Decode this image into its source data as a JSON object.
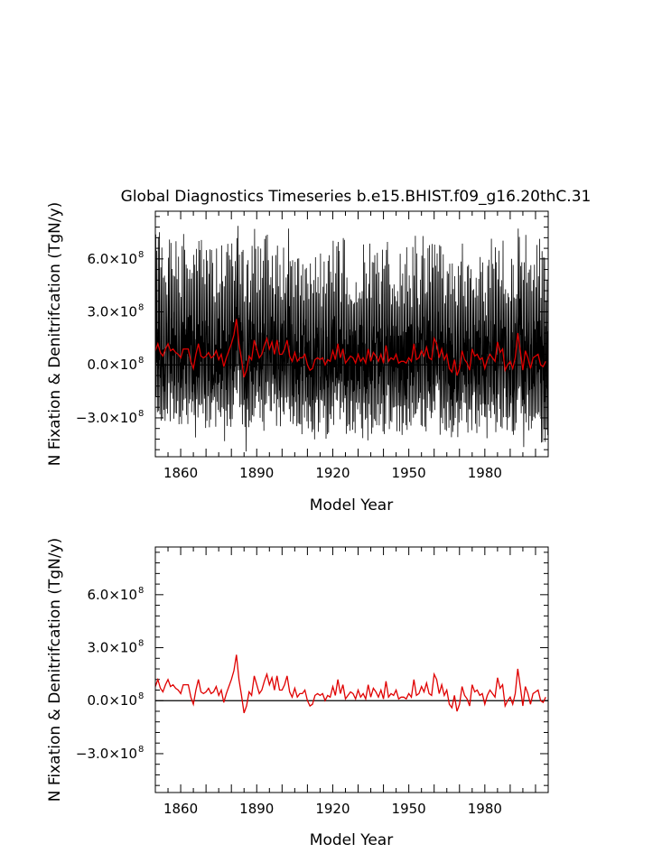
{
  "title": "Global Diagnostics Timeseries b.e15.BHIST.f09_g16.20thC.31",
  "chart_data": [
    {
      "type": "line",
      "xlabel": "Model Year",
      "ylabel": "N Fixation & Denitrifcation (TgN/y)",
      "xlim": [
        1850,
        2005
      ],
      "ylim": [
        -520000000.0,
        870000000.0
      ],
      "x_ticks": [
        1860,
        1890,
        1920,
        1950,
        1980
      ],
      "y_ticks": [
        {
          "value": 600000000.0,
          "mantissa": "6.0×10",
          "exp": "8"
        },
        {
          "value": 300000000.0,
          "mantissa": "3.0×10",
          "exp": "8"
        },
        {
          "value": 0.0,
          "mantissa": "0.0×10",
          "exp": "8"
        },
        {
          "value": -300000000.0,
          "mantissa": "−3.0×10",
          "exp": "8"
        }
      ],
      "zero_line": true,
      "series": [
        {
          "color": "#000000",
          "kind": "monthly",
          "note": "monthly values oscillate between about -4.5e8 and 8.0e8 around the annual mean"
        },
        {
          "color": "#e00000",
          "kind": "annual",
          "values_ref": "annual_mean"
        }
      ]
    },
    {
      "type": "line",
      "xlabel": "Model Year",
      "ylabel": "N Fixation & Denitrifcation (TgN/y)",
      "xlim": [
        1850,
        2005
      ],
      "ylim": [
        -520000000.0,
        870000000.0
      ],
      "x_ticks": [
        1860,
        1890,
        1920,
        1950,
        1980
      ],
      "y_ticks": [
        {
          "value": 600000000.0,
          "mantissa": "6.0×10",
          "exp": "8"
        },
        {
          "value": 300000000.0,
          "mantissa": "3.0×10",
          "exp": "8"
        },
        {
          "value": 0.0,
          "mantissa": "0.0×10",
          "exp": "8"
        },
        {
          "value": -300000000.0,
          "mantissa": "−3.0×10",
          "exp": "8"
        }
      ],
      "zero_line": true,
      "series": [
        {
          "color": "#e00000",
          "kind": "annual",
          "values_ref": "annual_mean"
        }
      ]
    }
  ],
  "annual_mean": {
    "x_start": 1850,
    "x_step": 1,
    "values": [
      80000000.0,
      120000000.0,
      70000000.0,
      50000000.0,
      90000000.0,
      120000000.0,
      80000000.0,
      90000000.0,
      70000000.0,
      60000000.0,
      40000000.0,
      90000000.0,
      90000000.0,
      90000000.0,
      20000000.0,
      -20000000.0,
      60000000.0,
      120000000.0,
      50000000.0,
      40000000.0,
      50000000.0,
      70000000.0,
      40000000.0,
      50000000.0,
      80000000.0,
      30000000.0,
      60000000.0,
      -10000000.0,
      40000000.0,
      80000000.0,
      120000000.0,
      170000000.0,
      260000000.0,
      120000000.0,
      30000000.0,
      -70000000.0,
      -30000000.0,
      50000000.0,
      30000000.0,
      140000000.0,
      90000000.0,
      40000000.0,
      60000000.0,
      110000000.0,
      150000000.0,
      90000000.0,
      130000000.0,
      60000000.0,
      140000000.0,
      60000000.0,
      60000000.0,
      90000000.0,
      140000000.0,
      50000000.0,
      20000000.0,
      70000000.0,
      20000000.0,
      40000000.0,
      40000000.0,
      60000000.0,
      0.0,
      -30000000.0,
      -20000000.0,
      30000000.0,
      40000000.0,
      30000000.0,
      40000000.0,
      0.0,
      30000000.0,
      20000000.0,
      80000000.0,
      30000000.0,
      120000000.0,
      40000000.0,
      90000000.0,
      10000000.0,
      30000000.0,
      50000000.0,
      40000000.0,
      10000000.0,
      60000000.0,
      20000000.0,
      40000000.0,
      10000000.0,
      90000000.0,
      20000000.0,
      70000000.0,
      50000000.0,
      20000000.0,
      60000000.0,
      10000000.0,
      110000000.0,
      20000000.0,
      40000000.0,
      30000000.0,
      60000000.0,
      10000000.0,
      20000000.0,
      20000000.0,
      10000000.0,
      40000000.0,
      20000000.0,
      120000000.0,
      30000000.0,
      40000000.0,
      80000000.0,
      50000000.0,
      100000000.0,
      40000000.0,
      30000000.0,
      150000000.0,
      120000000.0,
      40000000.0,
      90000000.0,
      30000000.0,
      60000000.0,
      -20000000.0,
      -40000000.0,
      30000000.0,
      -60000000.0,
      -20000000.0,
      80000000.0,
      30000000.0,
      10000000.0,
      -30000000.0,
      90000000.0,
      50000000.0,
      60000000.0,
      30000000.0,
      40000000.0,
      -20000000.0,
      30000000.0,
      60000000.0,
      40000000.0,
      20000000.0,
      130000000.0,
      70000000.0,
      90000000.0,
      -30000000.0,
      0.0,
      20000000.0,
      -20000000.0,
      40000000.0,
      180000000.0,
      80000000.0,
      -30000000.0,
      80000000.0,
      40000000.0,
      -20000000.0,
      40000000.0,
      50000000.0,
      60000000.0,
      0.0,
      -10000000.0,
      20000000.0
    ]
  }
}
